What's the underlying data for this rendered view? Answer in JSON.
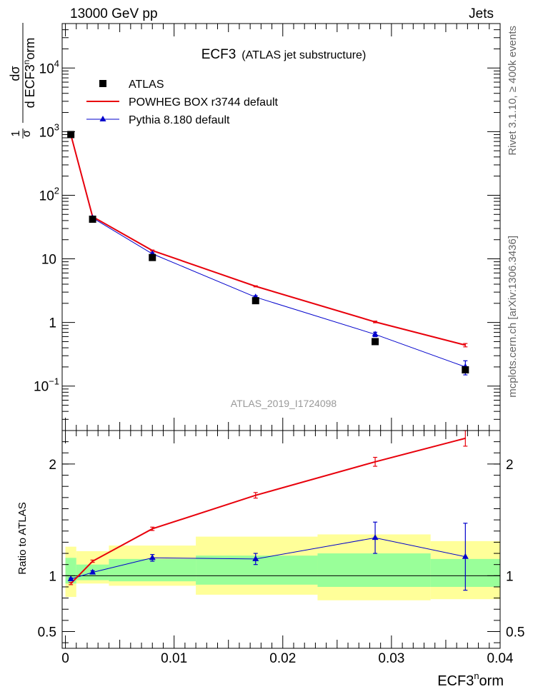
{
  "header": {
    "left": "13000 GeV pp",
    "right": "Jets",
    "side_rivet": "Rivet 3.1.10, ≥ 400k events",
    "side_mcplots": "mcplots.cern.ch [arXiv:1306.3436]",
    "analysis_id": "ATLAS_2019_I1724098"
  },
  "colors": {
    "atlas": "#000000",
    "powheg": "#e8000b",
    "pythia": "#0000cc",
    "band_outer": "#ffff99",
    "band_inner": "#99ff99"
  },
  "chart_data": [
    {
      "type": "scatter",
      "title": "ECF3",
      "subtitle": "(ATLAS jet substructure)",
      "ylabel": {
        "lhs_num": "1",
        "lhs_den": "σ",
        "d_num": "dσ",
        "d_den_pre": "d ECF3",
        "d_den_sup": "n",
        "d_den_post": "orm"
      },
      "yscale": "log",
      "ylim": [
        0.02,
        50000
      ],
      "xlim": [
        -0.0003,
        0.04
      ],
      "yticks": [
        {
          "value": 0.1,
          "base": "10",
          "exp": "−1"
        },
        {
          "value": 1,
          "base": "1",
          "exp": ""
        },
        {
          "value": 10,
          "base": "10",
          "exp": ""
        },
        {
          "value": 100,
          "base": "10",
          "exp": "2"
        },
        {
          "value": 1000,
          "base": "10",
          "exp": "3"
        },
        {
          "value": 10000,
          "base": "10",
          "exp": "4"
        }
      ],
      "legend": [
        {
          "key": "atlas",
          "label": "ATLAS"
        },
        {
          "key": "powheg",
          "label": "POWHEG BOX r3744 default"
        },
        {
          "key": "pythia",
          "label": "Pythia 8.180 default"
        }
      ],
      "series": [
        {
          "name": "ATLAS",
          "key": "atlas",
          "x": [
            0.0005,
            0.0025,
            0.008,
            0.0175,
            0.0285,
            0.0368
          ],
          "y": [
            900,
            42,
            10.5,
            2.2,
            0.5,
            0.18
          ]
        },
        {
          "name": "POWHEG BOX r3744 default",
          "key": "powheg",
          "x": [
            0.0005,
            0.0025,
            0.008,
            0.0175,
            0.0285,
            0.0368
          ],
          "y": [
            890,
            46,
            13.5,
            3.7,
            1.02,
            0.44
          ],
          "err": [
            0.02,
            0.02,
            0.02,
            0.02,
            0.03,
            0.06
          ]
        },
        {
          "name": "Pythia 8.180 default",
          "key": "pythia",
          "x": [
            0.0005,
            0.0025,
            0.008,
            0.0175,
            0.0285,
            0.0368
          ],
          "y": [
            880,
            44,
            12,
            2.5,
            0.65,
            0.2
          ],
          "err": [
            0.02,
            0.03,
            0.04,
            0.05,
            0.08,
            0.25
          ]
        }
      ]
    },
    {
      "type": "line",
      "ylabel": "Ratio to ATLAS",
      "xlabel": {
        "base": "ECF3",
        "sup": "n",
        "post": "orm"
      },
      "ylim": [
        0.35,
        2.3
      ],
      "xlim": [
        -0.0003,
        0.04
      ],
      "xticks": [
        {
          "value": 0,
          "label": "0"
        },
        {
          "value": 0.01,
          "label": "0.01"
        },
        {
          "value": 0.02,
          "label": "0.02"
        },
        {
          "value": 0.03,
          "label": "0.03"
        },
        {
          "value": 0.04,
          "label": "0.04"
        }
      ],
      "yticks": [
        {
          "value": 0.5,
          "label": "0.5"
        },
        {
          "value": 1,
          "label": "1"
        },
        {
          "value": 2,
          "label": "2"
        }
      ],
      "bands": [
        {
          "x0": 0.0,
          "x1": 0.001,
          "outer": [
            0.81,
            1.26
          ],
          "inner": [
            0.93,
            1.16
          ]
        },
        {
          "x0": 0.001,
          "x1": 0.004,
          "outer": [
            0.93,
            1.22
          ],
          "inner": [
            0.96,
            1.1
          ]
        },
        {
          "x0": 0.004,
          "x1": 0.012,
          "outer": [
            0.91,
            1.27
          ],
          "inner": [
            0.95,
            1.15
          ]
        },
        {
          "x0": 0.012,
          "x1": 0.0232,
          "outer": [
            0.83,
            1.35
          ],
          "inner": [
            0.92,
            1.18
          ]
        },
        {
          "x0": 0.0232,
          "x1": 0.0336,
          "outer": [
            0.78,
            1.37
          ],
          "inner": [
            0.9,
            1.2
          ]
        },
        {
          "x0": 0.0336,
          "x1": 0.04,
          "outer": [
            0.79,
            1.31
          ],
          "inner": [
            0.9,
            1.15
          ]
        }
      ],
      "series": [
        {
          "name": "POWHEG BOX r3744 default",
          "key": "powheg",
          "x": [
            0.0005,
            0.0025,
            0.008,
            0.0175,
            0.0285,
            0.0368
          ],
          "y": [
            0.93,
            1.13,
            1.42,
            1.72,
            2.02,
            2.23
          ],
          "err": [
            0.01,
            0.01,
            0.015,
            0.025,
            0.04,
            0.07
          ]
        },
        {
          "name": "Pythia 8.180 default",
          "key": "pythia",
          "x": [
            0.0005,
            0.0025,
            0.008,
            0.0175,
            0.0285,
            0.0368
          ],
          "y": [
            0.97,
            1.03,
            1.16,
            1.15,
            1.34,
            1.17
          ],
          "err": [
            0.01,
            0.015,
            0.03,
            0.05,
            0.14,
            0.3
          ]
        }
      ]
    }
  ]
}
